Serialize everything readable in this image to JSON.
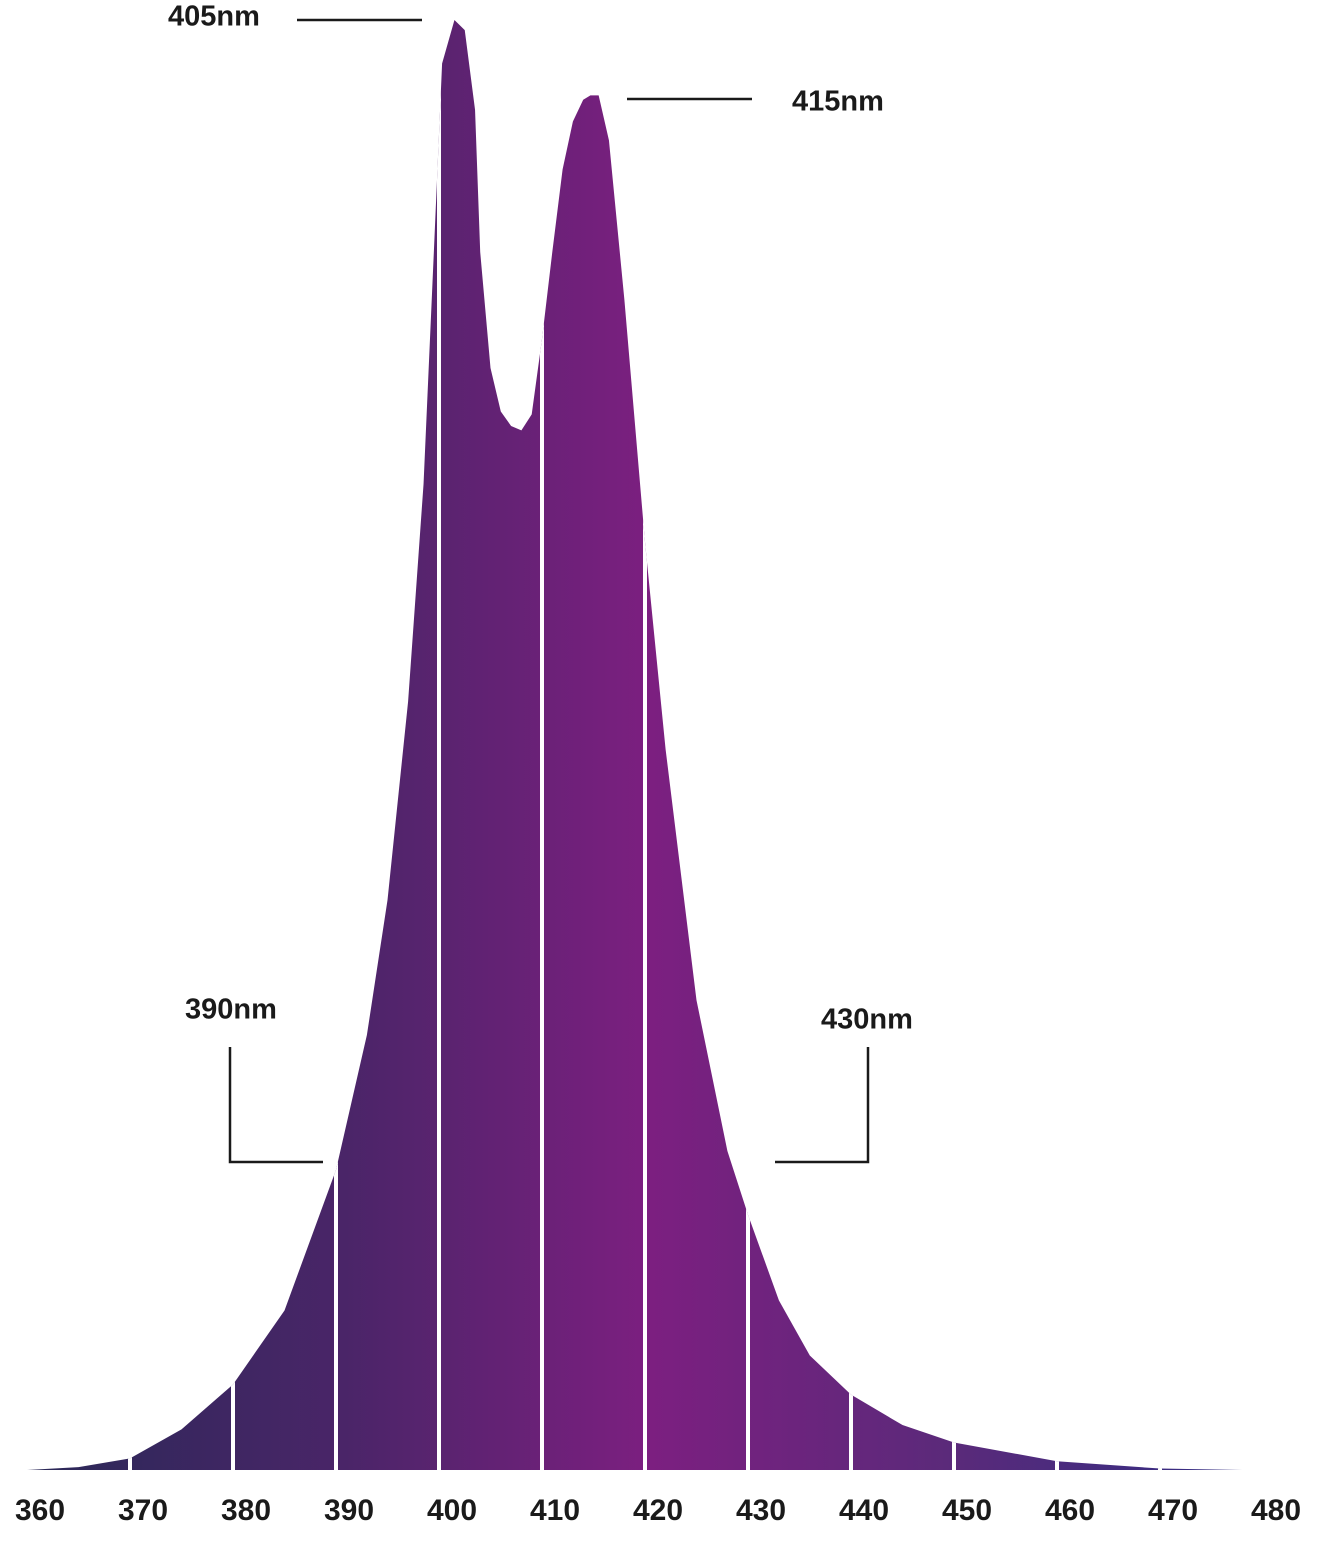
{
  "chart_data": {
    "type": "area",
    "x": [
      360,
      365,
      370,
      375,
      380,
      385,
      390,
      393,
      395,
      397,
      398.5,
      399.5,
      400.3,
      401.5,
      402.5,
      403.5,
      404,
      405,
      406,
      407,
      408,
      409,
      410,
      411,
      412,
      413,
      414,
      414.7,
      415.5,
      416.5,
      418,
      420,
      422,
      425,
      428,
      430,
      433,
      436,
      440,
      445,
      450,
      460,
      470,
      478,
      480
    ],
    "values": [
      0,
      0.2,
      0.8,
      2.8,
      5.9,
      11,
      20.7,
      30,
      39.3,
      53,
      68,
      84,
      97,
      100,
      99.3,
      93.8,
      84,
      76,
      73,
      72,
      71.7,
      72.8,
      78,
      84,
      89.7,
      93,
      94.5,
      94.8,
      94.8,
      91.7,
      80.7,
      64,
      49.7,
      32.4,
      22,
      17.6,
      11.7,
      7.9,
      5.2,
      3.1,
      1.9,
      0.6,
      0.1,
      0,
      0
    ],
    "xlim": [
      360,
      480
    ],
    "xticks": [
      360,
      370,
      380,
      390,
      400,
      410,
      420,
      430,
      440,
      450,
      460,
      470,
      480
    ],
    "ylim": [
      0,
      100
    ],
    "colors": [
      "#2b2858",
      "#4a2568",
      "#7c1f80",
      "#5a2a7a",
      "#2f2d84"
    ],
    "annotations": [
      {
        "text": "405nm",
        "x": 405
      },
      {
        "text": "415nm",
        "x": 415
      },
      {
        "text": "390nm",
        "x": 390
      },
      {
        "text": "430nm",
        "x": 430
      }
    ]
  }
}
